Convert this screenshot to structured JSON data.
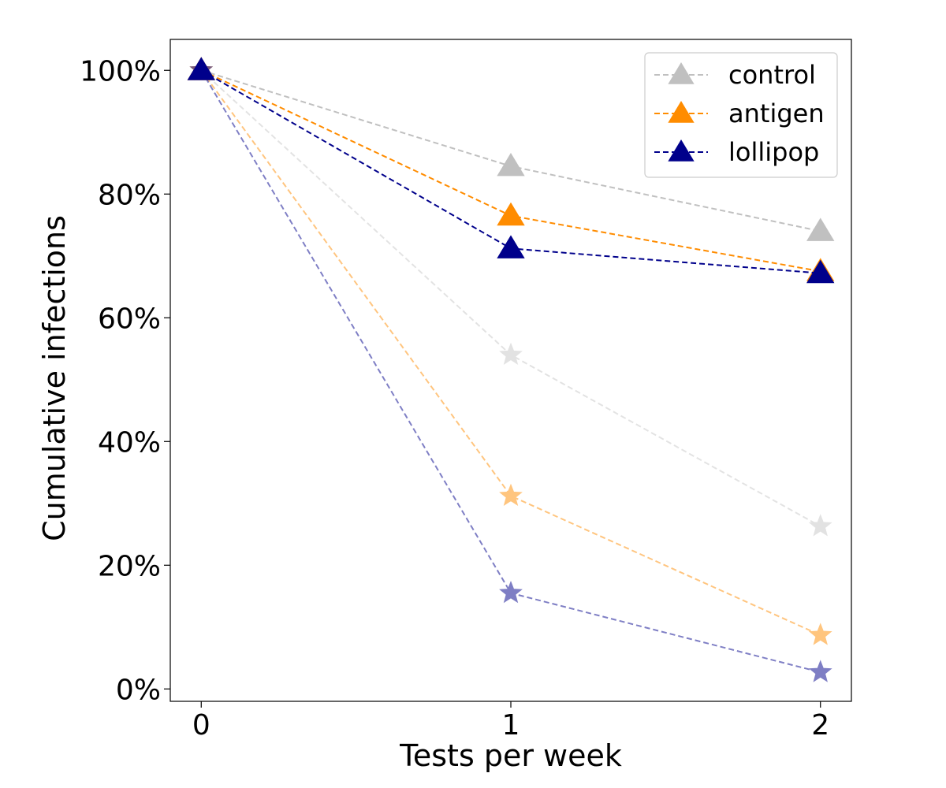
{
  "chart_data": {
    "type": "line",
    "title": "",
    "xlabel": "Tests per week",
    "ylabel": "Cumulative infections",
    "x": [
      0,
      1,
      2
    ],
    "x_ticks": [
      {
        "value": 0,
        "label": "0"
      },
      {
        "value": 1,
        "label": "1"
      },
      {
        "value": 2,
        "label": "2"
      }
    ],
    "y_ticks": [
      {
        "value": 0,
        "label": "0%"
      },
      {
        "value": 20,
        "label": "20%"
      },
      {
        "value": 40,
        "label": "40%"
      },
      {
        "value": 60,
        "label": "60%"
      },
      {
        "value": 80,
        "label": "80%"
      },
      {
        "value": 100,
        "label": "100%"
      }
    ],
    "xlim": [
      -0.1,
      2.1
    ],
    "ylim": [
      -2,
      105
    ],
    "y_unit": "%",
    "grid": false,
    "legend_position": "top-right",
    "series": [
      {
        "name": "control",
        "marker": "triangle",
        "color": "#c0c0c0",
        "opacity": 1.0,
        "values": [
          100,
          84.5,
          74
        ]
      },
      {
        "name": "antigen",
        "marker": "triangle",
        "color": "#ff8c00",
        "opacity": 1.0,
        "values": [
          100,
          76.5,
          67.5
        ]
      },
      {
        "name": "lollipop",
        "marker": "triangle",
        "color": "#00008b",
        "opacity": 1.0,
        "values": [
          100,
          71.2,
          67.2
        ]
      },
      {
        "name": "",
        "marker": "star",
        "color": "#c0c0c0",
        "opacity": 0.45,
        "values": [
          100,
          54,
          26.3
        ]
      },
      {
        "name": "",
        "marker": "star",
        "color": "#ff8c00",
        "opacity": 0.5,
        "values": [
          100,
          31.2,
          8.7
        ]
      },
      {
        "name": "",
        "marker": "star",
        "color": "#00008b",
        "opacity": 0.5,
        "values": [
          100,
          15.5,
          2.7
        ]
      }
    ]
  }
}
